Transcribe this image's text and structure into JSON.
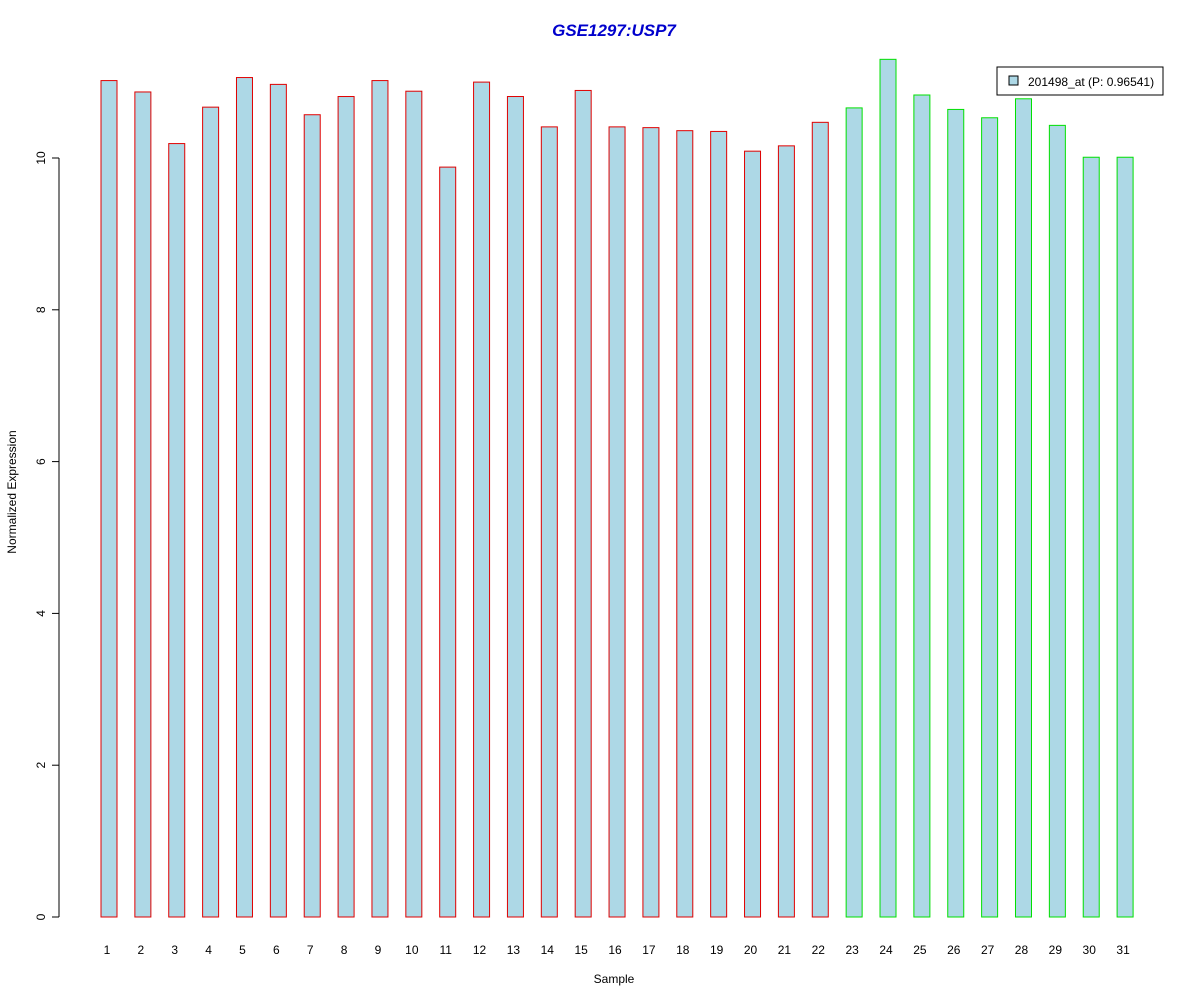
{
  "chart_data": {
    "type": "bar",
    "title": "GSE1297:USP7",
    "xlabel": "Sample",
    "ylabel": "Normalized Expression",
    "categories": [
      "1",
      "2",
      "3",
      "4",
      "5",
      "6",
      "7",
      "8",
      "9",
      "10",
      "11",
      "12",
      "13",
      "14",
      "15",
      "16",
      "17",
      "18",
      "19",
      "20",
      "21",
      "22",
      "23",
      "24",
      "25",
      "26",
      "27",
      "28",
      "29",
      "30",
      "31"
    ],
    "values": [
      11.02,
      10.87,
      10.19,
      10.67,
      11.06,
      10.97,
      10.57,
      10.81,
      11.02,
      10.88,
      9.88,
      11.0,
      10.81,
      10.41,
      10.89,
      10.41,
      10.4,
      10.36,
      10.35,
      10.09,
      10.16,
      10.47,
      10.66,
      11.3,
      10.83,
      10.64,
      10.53,
      10.78,
      10.43,
      10.01,
      10.01
    ],
    "groups": [
      1,
      1,
      1,
      1,
      1,
      1,
      1,
      1,
      1,
      1,
      1,
      1,
      1,
      1,
      1,
      1,
      1,
      1,
      1,
      1,
      1,
      1,
      2,
      2,
      2,
      2,
      2,
      2,
      2,
      2,
      2
    ],
    "group_colors": [
      "#e00000",
      "#00e000"
    ],
    "bar_fill": "#add8e6",
    "title_color": "#0000cc",
    "ylim": [
      0,
      11.3
    ],
    "yticks": [
      0,
      2,
      4,
      6,
      8,
      10
    ],
    "grid": false,
    "legend": {
      "position": "top-right",
      "entries": [
        {
          "label": "201498_at (P: 0.96541)",
          "color": "#add8e6"
        }
      ]
    }
  }
}
